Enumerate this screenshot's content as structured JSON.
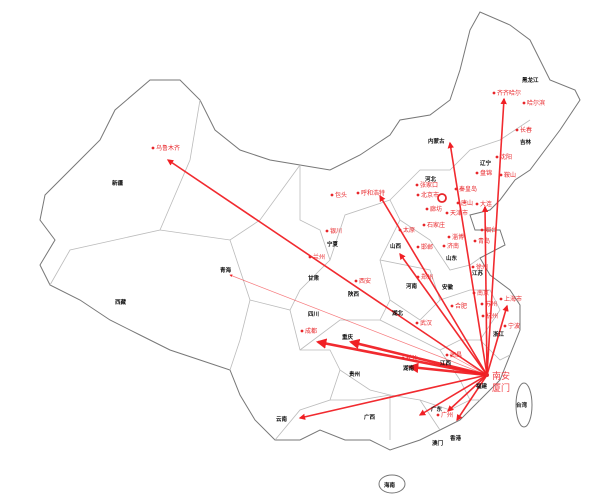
{
  "map": {
    "origin": {
      "name": "南安",
      "secondary": "厦门"
    },
    "colors": {
      "route": "#f01f24",
      "city": "#e8262a",
      "province": "#111111",
      "border": "#bbbbbb"
    },
    "provinces": [
      "黑龙江",
      "吉林",
      "辽宁",
      "内蒙古",
      "河北",
      "新疆",
      "西藏",
      "青海",
      "甘肃",
      "宁夏",
      "山西",
      "山东",
      "陕西",
      "河南",
      "安徽",
      "江苏",
      "四川",
      "湖北",
      "重庆",
      "浙江",
      "江西",
      "湖南",
      "贵州",
      "福建",
      "云南",
      "广西",
      "广东",
      "台湾",
      "香港",
      "澳门",
      "海南"
    ],
    "cities": [
      "齐齐哈尔",
      "哈尔滨",
      "长春",
      "沈阳",
      "鞍山",
      "盘锦",
      "秦皇岛",
      "唐山",
      "大连",
      "张家口",
      "北京市",
      "廊坊",
      "天津市",
      "石家庄",
      "包头",
      "呼和浩特",
      "银川",
      "太原",
      "兰州",
      "邯郸",
      "济南",
      "淄博",
      "青岛",
      "烟台",
      "郑州",
      "徐州",
      "西安",
      "南京",
      "合肥",
      "苏州",
      "上海市",
      "杭州",
      "宁波",
      "武汉",
      "成都",
      "南昌",
      "长沙",
      "广州",
      "乌鲁木齐"
    ],
    "routes": [
      {
        "to": "乌鲁木齐",
        "weight": "medium"
      },
      {
        "to": "青海",
        "weight": "thin"
      },
      {
        "to": "云南",
        "weight": "medium"
      },
      {
        "to": "成都",
        "weight": "heavy"
      },
      {
        "to": "重庆",
        "weight": "heavy"
      },
      {
        "to": "湖南",
        "weight": "heavy"
      },
      {
        "to": "南昌",
        "weight": "thin"
      },
      {
        "to": "呼和浩特",
        "weight": "medium"
      },
      {
        "to": "山西",
        "weight": "medium"
      },
      {
        "to": "内蒙古",
        "weight": "medium"
      },
      {
        "to": "大连",
        "weight": "medium"
      },
      {
        "to": "齐齐哈尔",
        "weight": "medium"
      },
      {
        "to": "上海市",
        "weight": "medium"
      },
      {
        "to": "广东",
        "weight": "medium"
      },
      {
        "to": "广州",
        "weight": "medium"
      },
      {
        "to": "香港",
        "weight": "medium"
      }
    ]
  }
}
